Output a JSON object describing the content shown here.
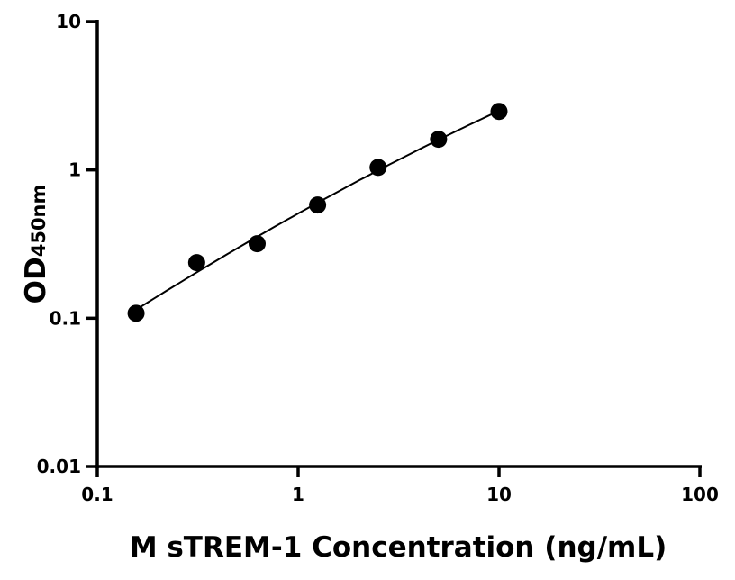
{
  "chart_data": {
    "type": "scatter",
    "xlabel": "M sTREM-1 Concentration (ng/mL)",
    "ylabel_main": "OD",
    "ylabel_sub": "450nm",
    "x_scale": "log",
    "y_scale": "log",
    "xlim": [
      0.1,
      100
    ],
    "ylim": [
      0.01,
      10
    ],
    "x_ticks": [
      "0.1",
      "1",
      "10",
      "100"
    ],
    "y_ticks": [
      "0.01",
      "0.1",
      "1",
      "10"
    ],
    "grid": false,
    "has_fit_curve": true,
    "marker_color": "#000000",
    "x": [
      0.156,
      0.3125,
      0.625,
      1.25,
      2.5,
      5,
      10
    ],
    "y": [
      0.108,
      0.237,
      0.318,
      0.58,
      1.04,
      1.61,
      2.48
    ]
  }
}
